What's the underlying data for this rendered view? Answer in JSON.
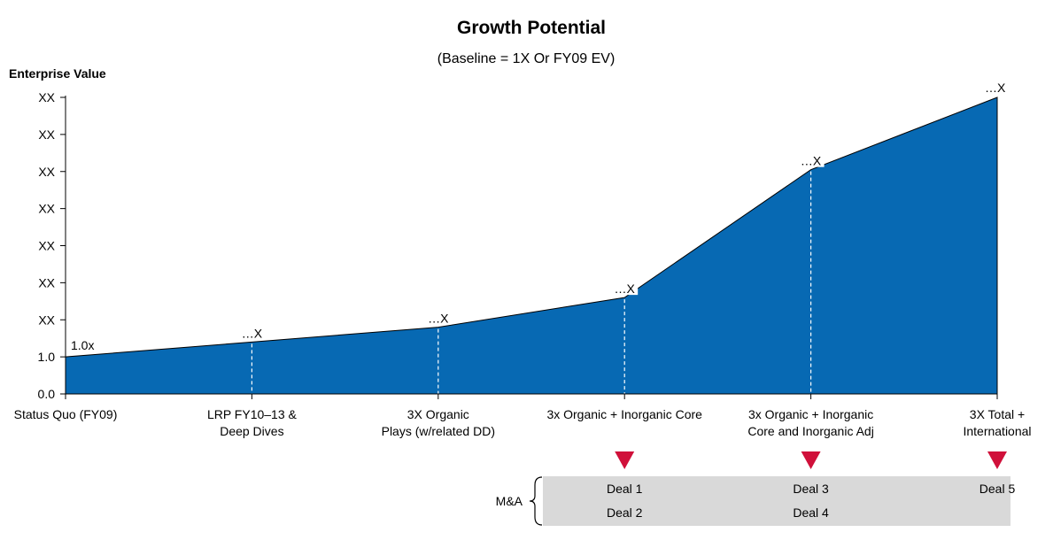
{
  "chart_data": {
    "type": "area",
    "title": "Growth Potential",
    "subtitle": "(Baseline = 1X Or FY09 EV)",
    "ylabel": "Enterprise Value",
    "ylim": [
      0,
      8
    ],
    "y_ticks": [
      0,
      1,
      2,
      3,
      4,
      5,
      6,
      7,
      8
    ],
    "y_tick_labels": [
      "0.0",
      "1.0",
      "XX",
      "XX",
      "XX",
      "XX",
      "XX",
      "XX",
      "XX"
    ],
    "grid": false,
    "categories": [
      [
        "Status Quo (FY09)"
      ],
      [
        "LRP FY10–13 &",
        "Deep Dives"
      ],
      [
        "3X Organic",
        "Plays (w/related DD)"
      ],
      [
        "3x Organic + Inorganic Core"
      ],
      [
        "3x Organic + Inorganic",
        "Core and Inorganic Adj"
      ],
      [
        "3X Total +",
        "International"
      ]
    ],
    "values": [
      1.0,
      1.4,
      1.8,
      2.6,
      6.05,
      8.0
    ],
    "data_labels": [
      "1.0x",
      "…X",
      "…X",
      "…X",
      "…X",
      "…X"
    ],
    "color": "#0769b3",
    "marker_color": "#d0103a",
    "marker_positions": [
      3,
      4,
      5
    ],
    "ma": {
      "label": "M&A",
      "deals": [
        {
          "category": 3,
          "items": [
            "Deal 1",
            "Deal 2"
          ]
        },
        {
          "category": 4,
          "items": [
            "Deal 3",
            "Deal 4"
          ]
        },
        {
          "category": 5,
          "items": [
            "Deal 5"
          ]
        }
      ]
    }
  }
}
